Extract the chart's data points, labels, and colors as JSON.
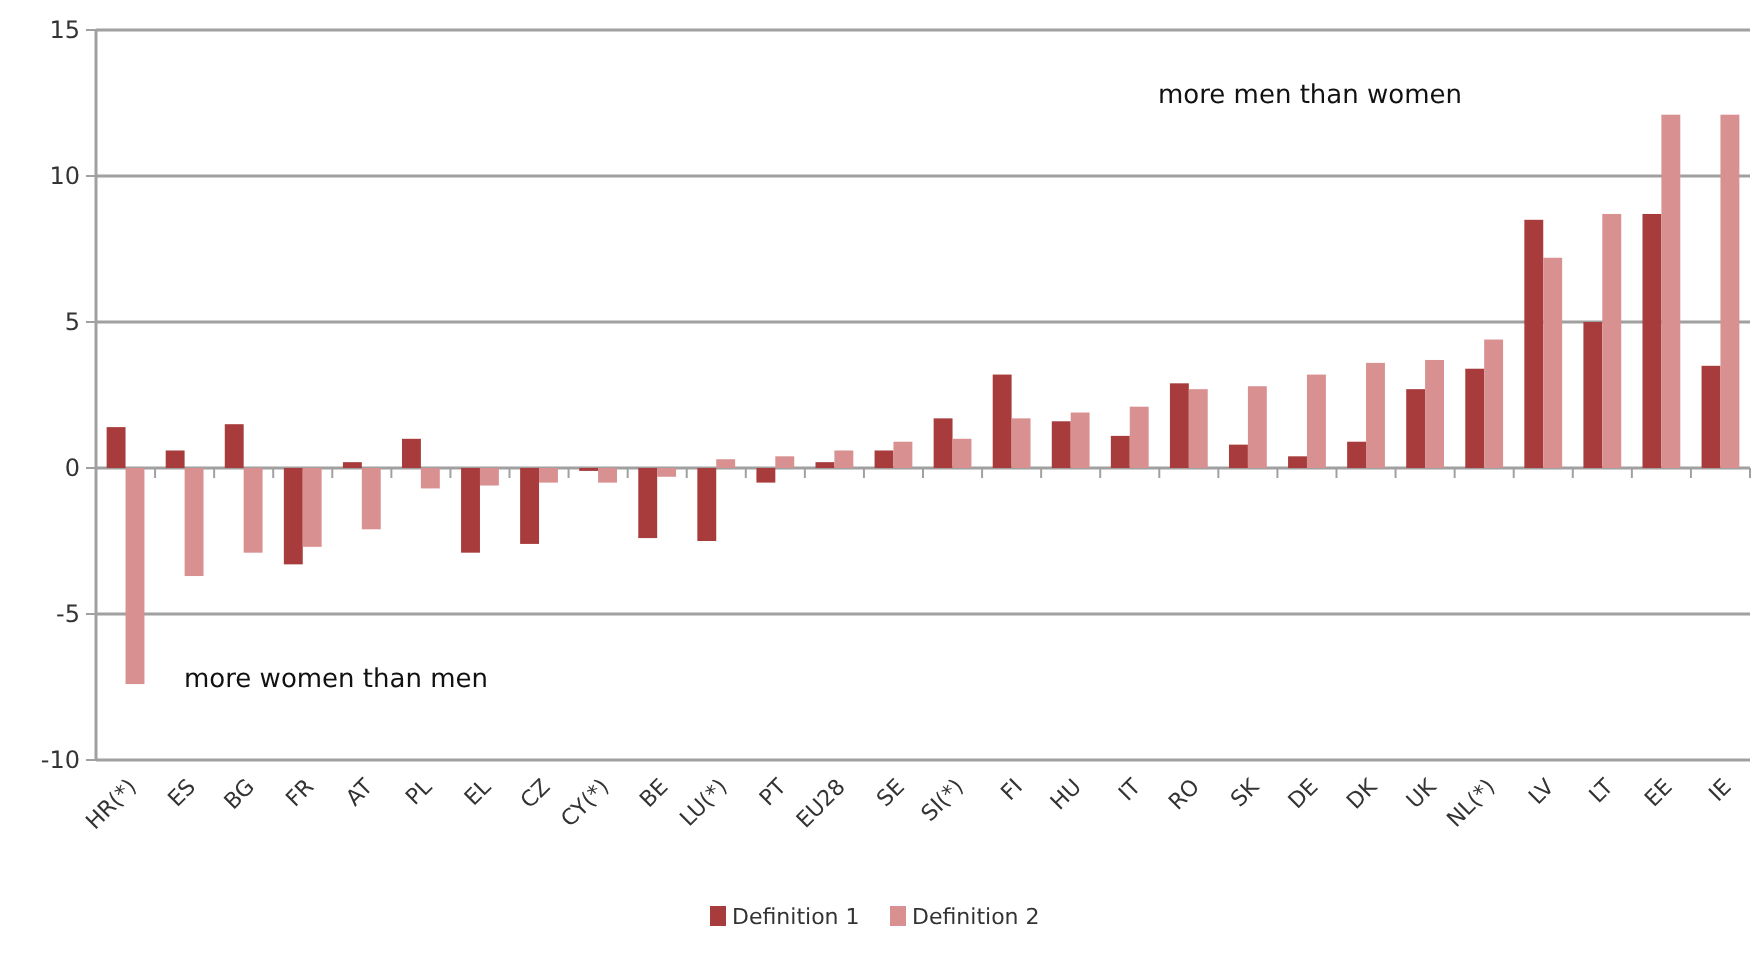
{
  "chart_data": {
    "type": "bar",
    "categories": [
      "HR(*)",
      "ES",
      "BG",
      "FR",
      "AT",
      "PL",
      "EL",
      "CZ",
      "CY(*)",
      "BE",
      "LU(*)",
      "PT",
      "EU28",
      "SE",
      "SI(*)",
      "FI",
      "HU",
      "IT",
      "RO",
      "SK",
      "DE",
      "DK",
      "UK",
      "NL(*)",
      "LV",
      "LT",
      "EE",
      "IE"
    ],
    "series": [
      {
        "name": "Definition 1",
        "color": "#a83c3c",
        "values": [
          1.4,
          0.6,
          1.5,
          -3.3,
          0.2,
          1.0,
          -2.9,
          -2.6,
          -0.1,
          -2.4,
          -2.5,
          -0.5,
          0.2,
          0.6,
          1.7,
          3.2,
          1.6,
          1.1,
          2.9,
          0.8,
          0.4,
          0.9,
          2.7,
          3.4,
          8.5,
          5.0,
          8.7,
          3.5
        ]
      },
      {
        "name": "Definition 2",
        "color": "#d99090",
        "values": [
          -7.4,
          -3.7,
          -2.9,
          -2.7,
          -2.1,
          -0.7,
          -0.6,
          -0.5,
          -0.5,
          -0.3,
          0.3,
          0.4,
          0.6,
          0.9,
          1.0,
          1.7,
          1.9,
          2.1,
          2.7,
          2.8,
          3.2,
          3.6,
          3.7,
          4.4,
          7.2,
          8.7,
          12.1,
          12.1
        ]
      }
    ],
    "ylim": [
      -10,
      15
    ],
    "yticks": [
      -10,
      -5,
      0,
      5,
      10,
      15
    ],
    "grid": "y",
    "legend": "bottom",
    "annotations": [
      "more men than women",
      "more women than men"
    ]
  }
}
